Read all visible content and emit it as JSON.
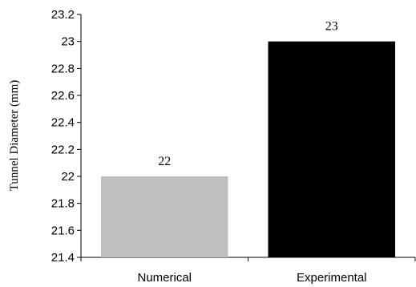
{
  "chart_data": {
    "type": "bar",
    "categories": [
      "Numerical",
      "Experimental"
    ],
    "values": [
      22,
      23
    ],
    "data_labels": [
      "22",
      "23"
    ],
    "colors": [
      "#bfbfbf",
      "#000000"
    ],
    "title": "",
    "xlabel": "",
    "ylabel": "Tunnel Diameter (mm)",
    "ylim": [
      21.4,
      23.2
    ],
    "yticks": [
      "21.4",
      "21.6",
      "21.8",
      "22",
      "22.2",
      "22.4",
      "22.6",
      "22.8",
      "23",
      "23.2"
    ],
    "grid": false,
    "legend": "none"
  }
}
